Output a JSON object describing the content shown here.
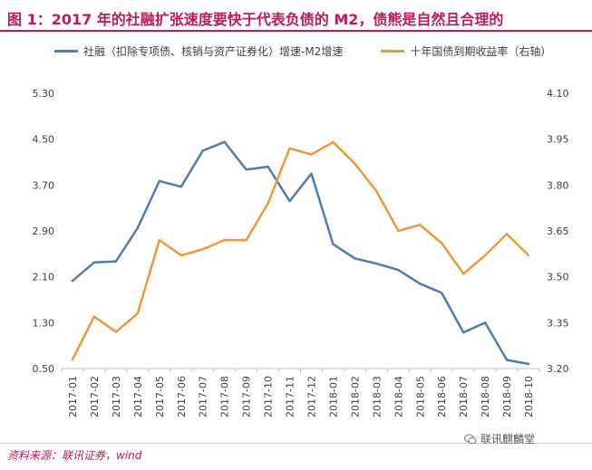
{
  "title": "图 1：2017 年的社融扩张速度要快于代表负债的 M2，债熊是自然且合理的",
  "source": "资料来源：联讯证券，wind",
  "watermark": "联讯麒麟堂",
  "chart_data": {
    "type": "line",
    "categories": [
      "2017-01",
      "2017-02",
      "2017-03",
      "2017-04",
      "2017-05",
      "2017-06",
      "2017-07",
      "2017-08",
      "2017-09",
      "2017-10",
      "2017-11",
      "2017-12",
      "2018-01",
      "2018-02",
      "2018-03",
      "2018-04",
      "2018-05",
      "2018-06",
      "2018-07",
      "2018-08",
      "2018-09",
      "2018-10"
    ],
    "series": [
      {
        "name": "社融（扣除专项债、核销与资产证券化）增速-M2增速",
        "axis": "left",
        "color": "#4a7fb5",
        "values": [
          2.03,
          2.35,
          2.37,
          2.95,
          3.77,
          3.67,
          4.3,
          4.45,
          3.97,
          4.02,
          3.42,
          3.9,
          2.67,
          2.42,
          2.33,
          2.22,
          1.98,
          1.82,
          1.13,
          1.3,
          0.65,
          0.58
        ]
      },
      {
        "name": "十年国债到期收益率（右轴）",
        "axis": "right",
        "color": "#f0973a",
        "values": [
          3.23,
          3.37,
          3.32,
          3.38,
          3.62,
          3.57,
          3.59,
          3.62,
          3.62,
          3.74,
          3.92,
          3.9,
          3.94,
          3.87,
          3.78,
          3.65,
          3.67,
          3.61,
          3.51,
          3.57,
          3.64,
          3.57
        ]
      }
    ],
    "yLeft": {
      "ticks": [
        "0.50",
        "1.30",
        "2.10",
        "2.90",
        "3.70",
        "4.50",
        "5.30"
      ],
      "ylim": [
        0.5,
        5.3
      ]
    },
    "yRight": {
      "ticks": [
        "3.20",
        "3.35",
        "3.50",
        "3.65",
        "3.80",
        "3.95",
        "4.10"
      ],
      "ylim": [
        3.2,
        4.1
      ]
    },
    "grid": false,
    "legend": "top"
  }
}
